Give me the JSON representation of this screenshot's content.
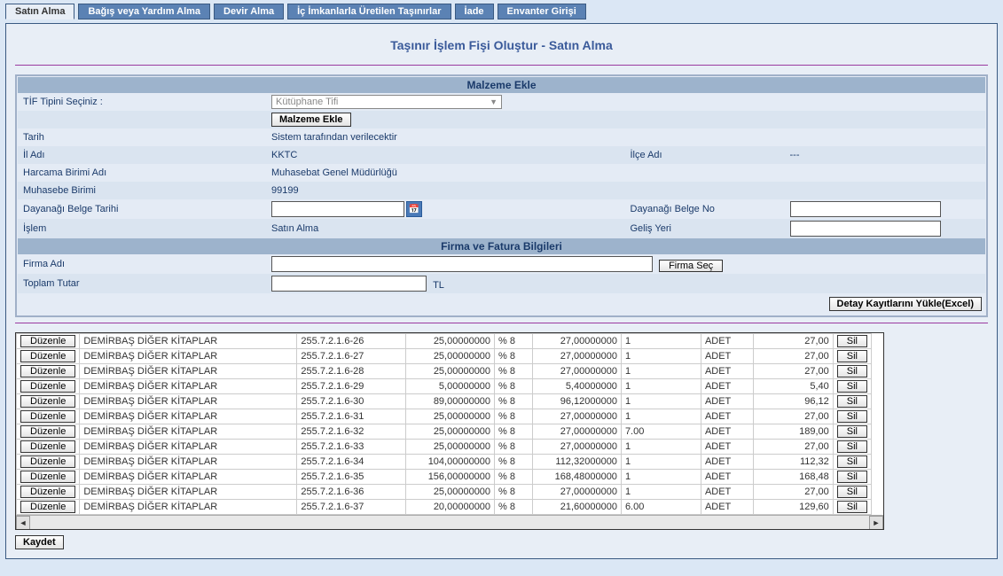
{
  "tabs": [
    "Satın Alma",
    "Bağış veya Yardım Alma",
    "Devir Alma",
    "İç İmkanlarla Üretilen Taşınırlar",
    "İade",
    "Envanter Girişi"
  ],
  "activeTab": 0,
  "page_title": "Taşınır İşlem Fişi Oluştur - Satın Alma",
  "section1_title": "Malzeme Ekle",
  "tif_label": "TİF Tipini Seçiniz :",
  "tif_selected": "Kütüphane Tifi",
  "btn_malzeme_ekle": "Malzeme Ekle",
  "tarih_label": "Tarih",
  "tarih_value": "Sistem tarafından verilecektir",
  "il_label": "İl Adı",
  "il_value": "KKTC",
  "ilce_label": "İlçe Adı",
  "ilce_value": "---",
  "harcama_label": "Harcama Birimi Adı",
  "harcama_value": "Muhasebat Genel Müdürlüğü",
  "muhasebe_label": "Muhasebe Birimi",
  "muhasebe_value": "99199",
  "dayanak_tarih_label": "Dayanağı Belge Tarihi",
  "dayanak_no_label": "Dayanağı Belge No",
  "islem_label": "İşlem",
  "islem_value": "Satın Alma",
  "gelis_label": "Geliş Yeri",
  "section2_title": "Firma ve Fatura Bilgileri",
  "firma_label": "Firma Adı",
  "btn_firma_sec": "Firma Seç",
  "toplam_label": "Toplam Tutar",
  "currency": "TL",
  "btn_excel": "Detay Kayıtlarını Yükle(Excel)",
  "btn_duzenle": "Düzenle",
  "btn_sil": "Sil",
  "btn_kaydet": "Kaydet",
  "rows": [
    {
      "name": "DEMİRBAŞ DİĞER KİTAPLAR",
      "code": "255.7.2.1.6-26",
      "v1": "25,00000000",
      "pct": "% 8",
      "v2": "27,00000000",
      "q": "1",
      "unit": "ADET",
      "tot": "27,00"
    },
    {
      "name": "DEMİRBAŞ DİĞER KİTAPLAR",
      "code": "255.7.2.1.6-27",
      "v1": "25,00000000",
      "pct": "% 8",
      "v2": "27,00000000",
      "q": "1",
      "unit": "ADET",
      "tot": "27,00"
    },
    {
      "name": "DEMİRBAŞ DİĞER KİTAPLAR",
      "code": "255.7.2.1.6-28",
      "v1": "25,00000000",
      "pct": "% 8",
      "v2": "27,00000000",
      "q": "1",
      "unit": "ADET",
      "tot": "27,00"
    },
    {
      "name": "DEMİRBAŞ DİĞER KİTAPLAR",
      "code": "255.7.2.1.6-29",
      "v1": "5,00000000",
      "pct": "% 8",
      "v2": "5,40000000",
      "q": "1",
      "unit": "ADET",
      "tot": "5,40"
    },
    {
      "name": "DEMİRBAŞ DİĞER KİTAPLAR",
      "code": "255.7.2.1.6-30",
      "v1": "89,00000000",
      "pct": "% 8",
      "v2": "96,12000000",
      "q": "1",
      "unit": "ADET",
      "tot": "96,12"
    },
    {
      "name": "DEMİRBAŞ DİĞER KİTAPLAR",
      "code": "255.7.2.1.6-31",
      "v1": "25,00000000",
      "pct": "% 8",
      "v2": "27,00000000",
      "q": "1",
      "unit": "ADET",
      "tot": "27,00"
    },
    {
      "name": "DEMİRBAŞ DİĞER KİTAPLAR",
      "code": "255.7.2.1.6-32",
      "v1": "25,00000000",
      "pct": "% 8",
      "v2": "27,00000000",
      "q": "7.00",
      "unit": "ADET",
      "tot": "189,00"
    },
    {
      "name": "DEMİRBAŞ DİĞER KİTAPLAR",
      "code": "255.7.2.1.6-33",
      "v1": "25,00000000",
      "pct": "% 8",
      "v2": "27,00000000",
      "q": "1",
      "unit": "ADET",
      "tot": "27,00"
    },
    {
      "name": "DEMİRBAŞ DİĞER KİTAPLAR",
      "code": "255.7.2.1.6-34",
      "v1": "104,00000000",
      "pct": "% 8",
      "v2": "112,32000000",
      "q": "1",
      "unit": "ADET",
      "tot": "112,32"
    },
    {
      "name": "DEMİRBAŞ DİĞER KİTAPLAR",
      "code": "255.7.2.1.6-35",
      "v1": "156,00000000",
      "pct": "% 8",
      "v2": "168,48000000",
      "q": "1",
      "unit": "ADET",
      "tot": "168,48"
    },
    {
      "name": "DEMİRBAŞ DİĞER KİTAPLAR",
      "code": "255.7.2.1.6-36",
      "v1": "25,00000000",
      "pct": "% 8",
      "v2": "27,00000000",
      "q": "1",
      "unit": "ADET",
      "tot": "27,00"
    },
    {
      "name": "DEMİRBAŞ DİĞER KİTAPLAR",
      "code": "255.7.2.1.6-37",
      "v1": "20,00000000",
      "pct": "% 8",
      "v2": "21,60000000",
      "q": "6.00",
      "unit": "ADET",
      "tot": "129,60"
    }
  ]
}
